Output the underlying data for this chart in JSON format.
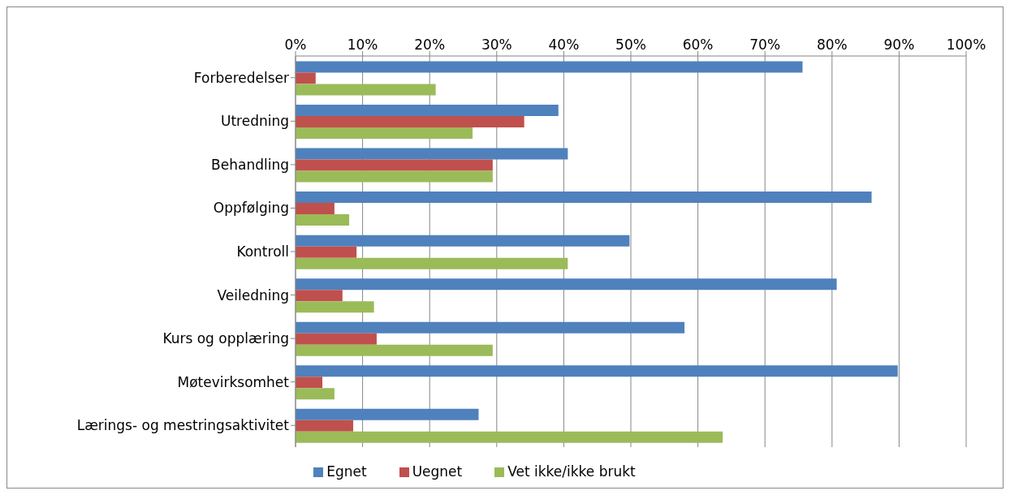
{
  "chart_data": {
    "type": "bar",
    "orientation": "horizontal",
    "categories": [
      "Forberedelser",
      "Utredning",
      "Behandling",
      "Oppfølging",
      "Kontroll",
      "Veiledning",
      "Kurs og opplæring",
      "Møtevirksomhet",
      "Lærings- og mestringsaktivitet"
    ],
    "series": [
      {
        "name": "Egnet",
        "color": "#4f81bd",
        "values": [
          75.6,
          39.2,
          40.6,
          85.9,
          49.8,
          80.7,
          58,
          89.8,
          27.3
        ]
      },
      {
        "name": "Uegnet",
        "color": "#c0504d",
        "values": [
          3,
          34.1,
          29.4,
          5.8,
          9.1,
          7,
          12.1,
          4,
          8.6
        ]
      },
      {
        "name": "Vet ikke/ikke brukt",
        "color": "#9bbb59",
        "values": [
          20.9,
          26.4,
          29.4,
          8,
          40.6,
          11.7,
          29.4,
          5.8,
          63.7
        ]
      }
    ],
    "xlim": [
      0,
      100
    ],
    "xticks": [
      {
        "value": 0,
        "label": "0%"
      },
      {
        "value": 10,
        "label": "10%"
      },
      {
        "value": 20,
        "label": "20%"
      },
      {
        "value": 30,
        "label": "30%"
      },
      {
        "value": 40,
        "label": "40%"
      },
      {
        "value": 50,
        "label": "50%"
      },
      {
        "value": 60,
        "label": "60%"
      },
      {
        "value": 70,
        "label": "70%"
      },
      {
        "value": 80,
        "label": "80%"
      },
      {
        "value": 90,
        "label": "90%"
      },
      {
        "value": 100,
        "label": "100%"
      }
    ],
    "grid": "x",
    "legend": "bottom"
  }
}
